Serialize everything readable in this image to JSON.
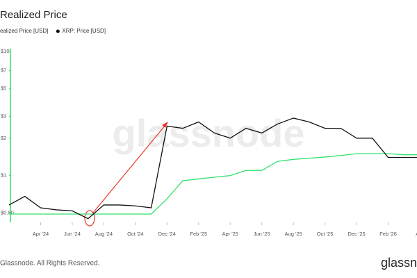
{
  "chart_data": {
    "type": "line",
    "title": "Realized Price",
    "x": [
      "2024-02",
      "2024-03",
      "2024-04",
      "2024-05",
      "2024-06",
      "2024-07",
      "2024-08",
      "2024-09",
      "2024-10",
      "2024-11",
      "2024-12",
      "2025-01",
      "2025-02",
      "2025-03",
      "2025-04",
      "2025-05",
      "2025-06",
      "2025-07",
      "2025-08",
      "2025-09",
      "2025-10",
      "2025-11",
      "2025-12",
      "2026-01",
      "2026-02",
      "2026-03",
      "2026-04"
    ],
    "series": [
      {
        "name": "ealized Price [USD]",
        "color": "#2fe06a",
        "values": [
          0.49,
          0.49,
          0.49,
          0.49,
          0.49,
          0.49,
          0.49,
          0.49,
          0.49,
          0.49,
          0.65,
          0.91,
          0.94,
          0.97,
          1.0,
          1.1,
          1.1,
          1.3,
          1.35,
          1.38,
          1.41,
          1.45,
          1.5,
          1.5,
          1.5,
          1.47,
          1.47
        ]
      },
      {
        "name": "XRP: Price [USD]",
        "color": "#111111",
        "values": [
          0.58,
          0.68,
          0.55,
          0.53,
          0.52,
          0.45,
          0.58,
          0.58,
          0.57,
          0.55,
          2.5,
          2.4,
          2.7,
          2.2,
          2.0,
          2.4,
          2.2,
          2.6,
          2.9,
          2.7,
          2.4,
          2.4,
          2.0,
          2.0,
          1.4,
          1.4,
          1.4
        ]
      }
    ],
    "xlim": [
      "2024-02",
      "2026-04"
    ],
    "xticks": [
      {
        "value": "2024-04",
        "label": "Apr '24"
      },
      {
        "value": "2024-06",
        "label": "Jun '24"
      },
      {
        "value": "2024-08",
        "label": "Aug '24"
      },
      {
        "value": "2024-10",
        "label": "Oct '24"
      },
      {
        "value": "2024-12",
        "label": "Dec '24"
      },
      {
        "value": "2025-02",
        "label": "Feb '25"
      },
      {
        "value": "2025-04",
        "label": "Apr '25"
      },
      {
        "value": "2025-06",
        "label": "Jun '25"
      },
      {
        "value": "2025-08",
        "label": "Aug '25"
      },
      {
        "value": "2025-10",
        "label": "Oct '25"
      },
      {
        "value": "2025-12",
        "label": "Dec '25"
      },
      {
        "value": "2026-02",
        "label": "Feb '26"
      },
      {
        "value": "2026-04",
        "label": "Apr"
      }
    ],
    "ylim": [
      0.42,
      10.5
    ],
    "log_y": true,
    "yticks": [
      {
        "value": 10,
        "label": "$10"
      },
      {
        "value": 7,
        "label": "$7"
      },
      {
        "value": 5,
        "label": "$5"
      },
      {
        "value": 3,
        "label": "$3"
      },
      {
        "value": 2,
        "label": "$2"
      },
      {
        "value": 1,
        "label": "$1"
      },
      {
        "value": 0.5,
        "label": "$0.50"
      }
    ],
    "watermark": "glassnode",
    "footer": "Glassnode. All Rights Reserved.",
    "logo": "glassn"
  }
}
